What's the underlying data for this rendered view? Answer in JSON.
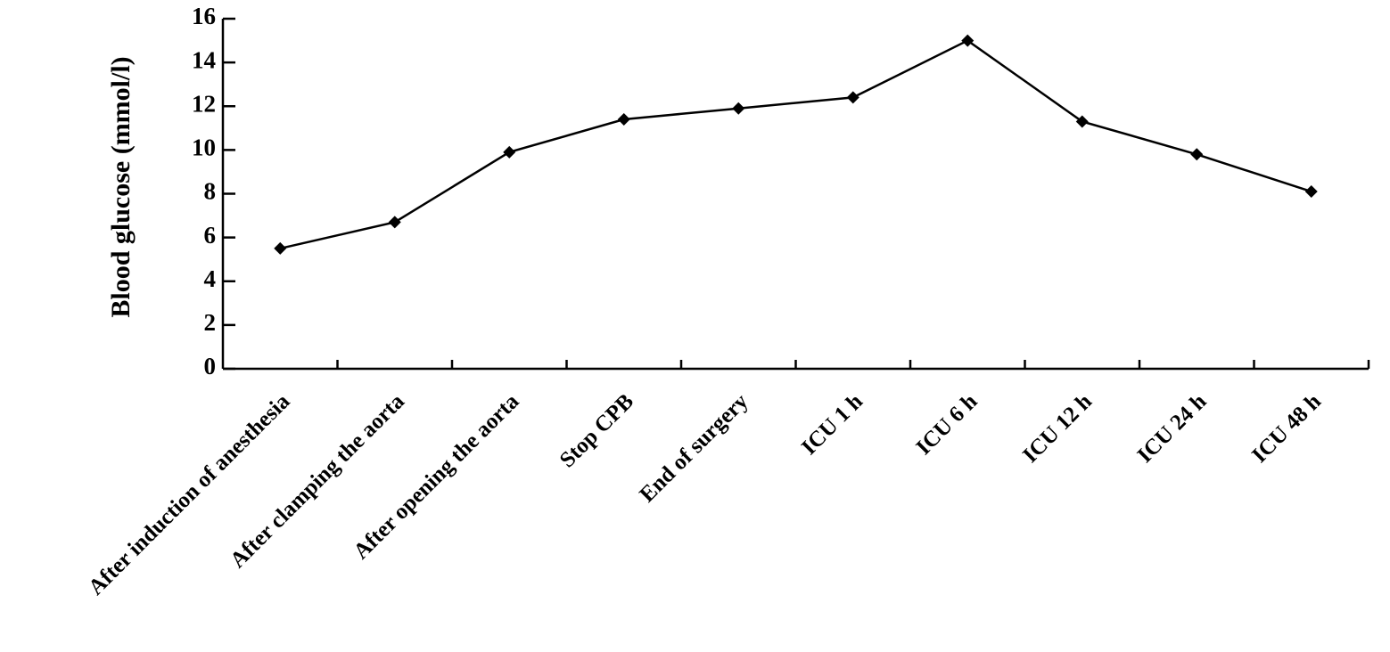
{
  "chart_data": {
    "type": "line",
    "y_label": "Blood glucose (mmol/l)",
    "categories": [
      "After induction of anesthesia",
      "After clamping the aorta",
      "After opening the aorta",
      "Stop CPB",
      "End of surgery",
      "ICU 1 h",
      "ICU 6 h",
      "ICU 12 h",
      "ICU 24 h",
      "ICU 48 h"
    ],
    "values": [
      5.5,
      6.7,
      9.9,
      11.4,
      11.9,
      12.4,
      15.0,
      11.3,
      9.8,
      8.1
    ],
    "color": "#000000",
    "ylim": [
      0,
      16
    ],
    "yticks": [
      0,
      2,
      4,
      6,
      8,
      10,
      12,
      14,
      16
    ],
    "grid": false
  }
}
